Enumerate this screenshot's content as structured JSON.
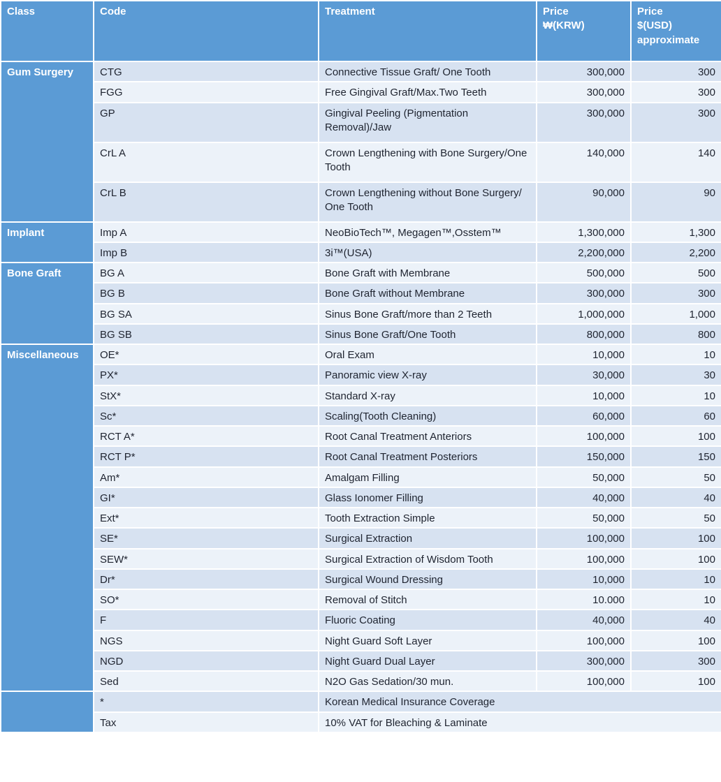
{
  "colors": {
    "accent_blue": "#5b9bd5",
    "band_dark": "#d7e2f1",
    "band_light": "#ecf2f9",
    "text_dark": "#1f2430",
    "grid_white": "#ffffff"
  },
  "table": {
    "headers": {
      "class": "Class",
      "code": "Code",
      "treatment": "Treatment",
      "price_krw": "Price\n₩(KRW)",
      "price_usd": "Price\n$(USD)\napproximate"
    },
    "sections": [
      {
        "class": "Gum Surgery",
        "rows": [
          {
            "code": "CTG",
            "treatment": "Connective Tissue Graft/ One Tooth",
            "krw": "300,000",
            "usd": "300"
          },
          {
            "code": "FGG",
            "treatment": "Free Gingival Graft/Max.Two Teeth",
            "krw": "300,000",
            "usd": "300"
          },
          {
            "code": "GP",
            "treatment": "Gingival Peeling (Pigmentation Removal)/Jaw",
            "krw": "300,000",
            "usd": "300",
            "tall": true
          },
          {
            "code": "CrL A",
            "treatment": "Crown Lengthening with Bone Surgery/One Tooth",
            "krw": "140,000",
            "usd": "140",
            "tall": true
          },
          {
            "code": "CrL B",
            "treatment": "Crown Lengthening without Bone Surgery/ One Tooth",
            "krw": "90,000",
            "usd": "90",
            "tall": true
          }
        ]
      },
      {
        "class": "Implant",
        "rows": [
          {
            "code": "Imp A",
            "treatment": "NeoBioTech™, Megagen™,Osstem™",
            "krw": "1,300,000",
            "usd": "1,300"
          },
          {
            "code": "Imp B",
            "treatment": "3i™(USA)",
            "krw": "2,200,000",
            "usd": "2,200"
          }
        ]
      },
      {
        "class": "Bone Graft",
        "rows": [
          {
            "code": "BG A",
            "treatment": "Bone Graft with Membrane",
            "krw": "500,000",
            "usd": "500"
          },
          {
            "code": "BG B",
            "treatment": "Bone Graft without Membrane",
            "krw": "300,000",
            "usd": "300"
          },
          {
            "code": "BG SA",
            "treatment": "Sinus Bone Graft/more than 2 Teeth",
            "krw": "1,000,000",
            "usd": "1,000"
          },
          {
            "code": "BG SB",
            "treatment": "Sinus Bone Graft/One Tooth",
            "krw": "800,000",
            "usd": "800"
          }
        ]
      },
      {
        "class": "Miscellaneous",
        "rows": [
          {
            "code": "OE*",
            "treatment": "Oral Exam",
            "krw": "10,000",
            "usd": "10"
          },
          {
            "code": "PX*",
            "treatment": "Panoramic view X-ray",
            "krw": "30,000",
            "usd": "30"
          },
          {
            "code": "StX*",
            "treatment": "Standard X-ray",
            "krw": "10,000",
            "usd": "10"
          },
          {
            "code": "Sc*",
            "treatment": "Scaling(Tooth Cleaning)",
            "krw": "60,000",
            "usd": "60"
          },
          {
            "code": "RCT A*",
            "treatment": "Root Canal Treatment Anteriors",
            "krw": "100,000",
            "usd": "100"
          },
          {
            "code": "RCT P*",
            "treatment": "Root Canal Treatment Posteriors",
            "krw": "150,000",
            "usd": "150"
          },
          {
            "code": "Am*",
            "treatment": "Amalgam Filling",
            "krw": "50,000",
            "usd": "50"
          },
          {
            "code": "GI*",
            "treatment": "Glass Ionomer Filling",
            "krw": "40,000",
            "usd": "40"
          },
          {
            "code": "Ext*",
            "treatment": "Tooth Extraction Simple",
            "krw": "50,000",
            "usd": "50"
          },
          {
            "code": "SE*",
            "treatment": "Surgical Extraction",
            "krw": "100,000",
            "usd": "100"
          },
          {
            "code": "SEW*",
            "treatment": "Surgical Extraction of Wisdom Tooth",
            "krw": "100,000",
            "usd": "100"
          },
          {
            "code": "Dr*",
            "treatment": "Surgical Wound Dressing",
            "krw": "10,000",
            "usd": "10"
          },
          {
            "code": "SO*",
            "treatment": "Removal of Stitch",
            "krw": "10.000",
            "usd": "10"
          },
          {
            "code": "F",
            "treatment": "Fluoric Coating",
            "krw": "40,000",
            "usd": "40"
          },
          {
            "code": "NGS",
            "treatment": "Night Guard Soft Layer",
            "krw": "100,000",
            "usd": "100"
          },
          {
            "code": "NGD",
            "treatment": "Night Guard Dual Layer",
            "krw": "300,000",
            "usd": "300"
          },
          {
            "code": "Sed",
            "treatment": "N2O Gas Sedation/30 mun.",
            "krw": "100,000",
            "usd": "100"
          }
        ]
      },
      {
        "class": "",
        "rows": [
          {
            "code": "*",
            "treatment": "Korean Medical Insurance Coverage",
            "krw": "",
            "usd": "",
            "span": true
          },
          {
            "code": "Tax",
            "treatment": "10% VAT for Bleaching & Laminate",
            "krw": "",
            "usd": "",
            "span": true
          }
        ]
      }
    ]
  }
}
